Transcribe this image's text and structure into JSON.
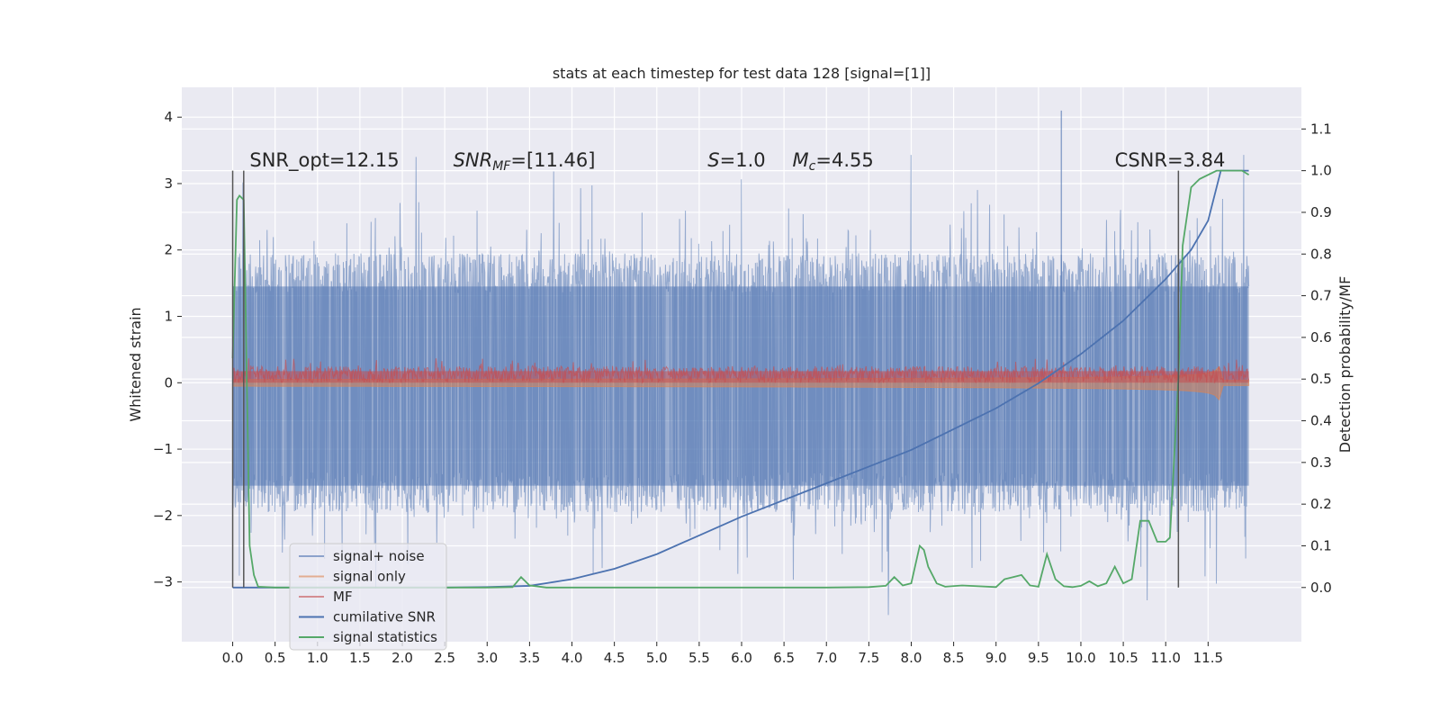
{
  "chart_data": {
    "type": "line",
    "title": "stats at each timestep for test data 128 [signal=[1]]",
    "ylabel": "Whitened strain",
    "y2label": "Detection probability/MF",
    "xlabel": "",
    "xlim": [
      -0.6,
      12.6
    ],
    "ylim": [
      -3.9,
      4.45
    ],
    "y2lim": [
      -0.13,
      1.2
    ],
    "x_ticks": [
      "0.0",
      "0.5",
      "1.0",
      "1.5",
      "2.0",
      "2.5",
      "3.0",
      "3.5",
      "4.0",
      "4.5",
      "5.0",
      "5.5",
      "6.0",
      "6.5",
      "7.0",
      "7.5",
      "8.0",
      "8.5",
      "9.0",
      "9.5",
      "10.0",
      "10.5",
      "11.0",
      "11.5"
    ],
    "y_ticks": [
      "4",
      "3",
      "2",
      "1",
      "0",
      "−1",
      "−2",
      "−3"
    ],
    "y2_ticks": [
      "1.1",
      "1.0",
      "0.9",
      "0.8",
      "0.7",
      "0.6",
      "0.5",
      "0.4",
      "0.3",
      "0.2",
      "0.1",
      "0.0"
    ],
    "grid": true,
    "legend_position": "lower-left",
    "annotations": [
      {
        "text": "SNR_opt=12.15",
        "x": 0.2,
        "y": 3.35
      },
      {
        "text": "SNR_MF=[11.46]",
        "x": 2.6,
        "y": 3.35
      },
      {
        "text": "S=1.0",
        "x": 5.6,
        "y": 3.35
      },
      {
        "text": "M_c=4.55",
        "x": 6.6,
        "y": 3.35
      },
      {
        "text": "CSNR=3.84",
        "x": 10.4,
        "y": 3.35
      }
    ],
    "vertical_lines": [
      0.0,
      0.13,
      11.15
    ],
    "series": [
      {
        "name": "signal+ noise",
        "color": "#4c72b0",
        "axis": "left",
        "x_range": [
          0.0,
          11.98
        ],
        "band": [
          -1.55,
          1.45
        ],
        "spike_min": -3.6,
        "spike_max": 4.1
      },
      {
        "name": "signal only",
        "color": "#dd8452",
        "axis": "left",
        "envelope_start": 0.05,
        "envelope_end_max": 1.0,
        "envelope_end_min": -1.05,
        "chirp_end": 11.65
      },
      {
        "name": "MF",
        "color": "#c44e52",
        "axis": "left",
        "band": [
          0.0,
          0.25
        ]
      },
      {
        "name": "cumilative SNR",
        "color": "#4c72b0",
        "axis": "right",
        "x": [
          0.0,
          0.5,
          1.0,
          1.5,
          2.0,
          2.5,
          3.0,
          3.5,
          4.0,
          4.5,
          5.0,
          5.5,
          6.0,
          6.5,
          7.0,
          7.5,
          8.0,
          8.5,
          9.0,
          9.5,
          10.0,
          10.5,
          11.0,
          11.3,
          11.5,
          11.65,
          11.98
        ],
        "y": [
          0.0,
          0.0,
          0.0,
          0.0,
          0.0,
          0.0,
          0.001,
          0.004,
          0.02,
          0.045,
          0.08,
          0.125,
          0.17,
          0.21,
          0.25,
          0.29,
          0.33,
          0.38,
          0.43,
          0.49,
          0.56,
          0.64,
          0.74,
          0.81,
          0.88,
          1.0,
          1.0
        ]
      },
      {
        "name": "signal statistics",
        "color": "#55a868",
        "axis": "right",
        "x": [
          0.0,
          0.05,
          0.08,
          0.13,
          0.2,
          0.25,
          0.3,
          0.5,
          1.0,
          2.0,
          3.0,
          3.3,
          3.4,
          3.5,
          3.7,
          4.0,
          5.0,
          6.0,
          7.0,
          7.5,
          7.7,
          7.8,
          7.9,
          8.0,
          8.1,
          8.15,
          8.2,
          8.3,
          8.4,
          8.6,
          9.0,
          9.1,
          9.2,
          9.3,
          9.4,
          9.5,
          9.6,
          9.7,
          9.8,
          9.9,
          10.0,
          10.1,
          10.2,
          10.3,
          10.4,
          10.5,
          10.6,
          10.7,
          10.8,
          10.9,
          11.0,
          11.05,
          11.15,
          11.2,
          11.3,
          11.4,
          11.6,
          11.9,
          11.98
        ],
        "y": [
          0.55,
          0.93,
          0.94,
          0.93,
          0.1,
          0.03,
          0.002,
          0.0,
          0.0,
          0.0,
          0.0,
          0.001,
          0.025,
          0.005,
          0.0,
          0.0,
          0.0,
          0.0,
          0.0,
          0.001,
          0.004,
          0.025,
          0.005,
          0.01,
          0.1,
          0.09,
          0.05,
          0.01,
          0.002,
          0.005,
          0.001,
          0.02,
          0.025,
          0.03,
          0.005,
          0.002,
          0.08,
          0.02,
          0.003,
          0.001,
          0.004,
          0.015,
          0.003,
          0.01,
          0.05,
          0.01,
          0.02,
          0.16,
          0.16,
          0.11,
          0.11,
          0.12,
          0.5,
          0.82,
          0.96,
          0.98,
          1.0,
          1.0,
          0.99
        ]
      }
    ]
  }
}
